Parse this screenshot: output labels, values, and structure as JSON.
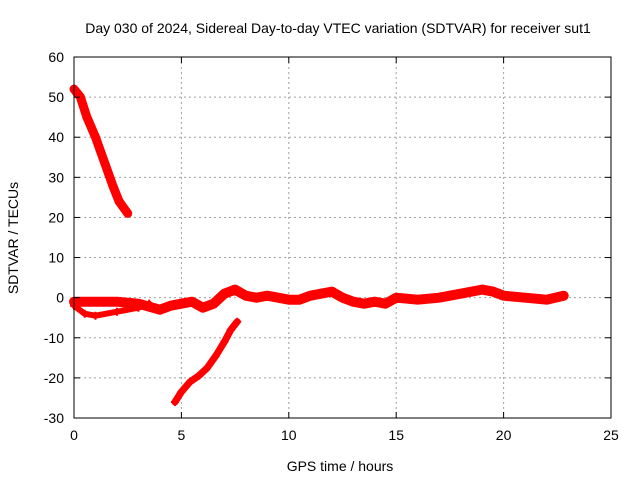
{
  "chart_data": {
    "type": "scatter",
    "title": "Day 030 of 2024, Sidereal Day-to-day VTEC variation (SDTVAR) for receiver sut1",
    "xlabel": "GPS time / hours",
    "ylabel": "SDTVAR / TECUs",
    "xlim": [
      0,
      25
    ],
    "ylim": [
      -30,
      60
    ],
    "xticks": [
      "0",
      "5",
      "10",
      "15",
      "20",
      "25"
    ],
    "yticks": [
      "-30",
      "-20",
      "-10",
      "0",
      "10",
      "20",
      "30",
      "40",
      "50",
      "60"
    ],
    "grid": true,
    "legend": "none",
    "series_color": "#ff0000",
    "series": [
      {
        "name": "satellite track 1 (decreasing)",
        "points": [
          [
            0.0,
            52.0
          ],
          [
            0.3,
            50.0
          ],
          [
            0.6,
            45.0
          ],
          [
            1.0,
            40.0
          ],
          [
            1.4,
            34.0
          ],
          [
            1.8,
            28.0
          ],
          [
            2.1,
            24.0
          ],
          [
            2.5,
            21.0
          ]
        ]
      },
      {
        "name": "satellite track 2 (increasing)",
        "points": [
          [
            4.7,
            -26.0
          ],
          [
            5.0,
            -23.5
          ],
          [
            5.4,
            -21.0
          ],
          [
            5.8,
            -19.5
          ],
          [
            6.2,
            -17.5
          ],
          [
            6.6,
            -14.5
          ],
          [
            7.0,
            -11.0
          ],
          [
            7.3,
            -8.0
          ],
          [
            7.6,
            -6.0
          ]
        ]
      },
      {
        "name": "satellite track 3 (lower branch)",
        "points": [
          [
            0.0,
            -2.0
          ],
          [
            0.5,
            -4.0
          ],
          [
            1.0,
            -4.5
          ],
          [
            2.0,
            -3.5
          ],
          [
            3.0,
            -2.5
          ],
          [
            3.5,
            -1.5
          ]
        ]
      },
      {
        "name": "near-zero tracks",
        "points": [
          [
            0.0,
            -1.0
          ],
          [
            1.0,
            -1.0
          ],
          [
            2.0,
            -1.0
          ],
          [
            3.0,
            -1.5
          ],
          [
            4.0,
            -3.0
          ],
          [
            4.5,
            -2.0
          ],
          [
            5.0,
            -1.5
          ],
          [
            5.5,
            -1.0
          ],
          [
            6.0,
            -2.5
          ],
          [
            6.5,
            -1.5
          ],
          [
            7.0,
            1.0
          ],
          [
            7.5,
            2.0
          ],
          [
            8.0,
            0.5
          ],
          [
            8.5,
            0.0
          ],
          [
            9.0,
            0.5
          ],
          [
            9.5,
            0.0
          ],
          [
            10.0,
            -0.5
          ],
          [
            10.5,
            -0.5
          ],
          [
            11.0,
            0.5
          ],
          [
            11.5,
            1.0
          ],
          [
            12.0,
            1.5
          ],
          [
            12.5,
            0.0
          ],
          [
            13.0,
            -1.0
          ],
          [
            13.5,
            -1.5
          ],
          [
            14.0,
            -1.0
          ],
          [
            14.5,
            -1.5
          ],
          [
            15.0,
            0.0
          ],
          [
            16.0,
            -0.5
          ],
          [
            17.0,
            0.0
          ],
          [
            18.0,
            1.0
          ],
          [
            19.0,
            2.0
          ],
          [
            19.5,
            1.5
          ],
          [
            20.0,
            0.5
          ],
          [
            21.0,
            0.0
          ],
          [
            22.0,
            -0.5
          ],
          [
            22.8,
            0.5
          ]
        ]
      }
    ]
  }
}
